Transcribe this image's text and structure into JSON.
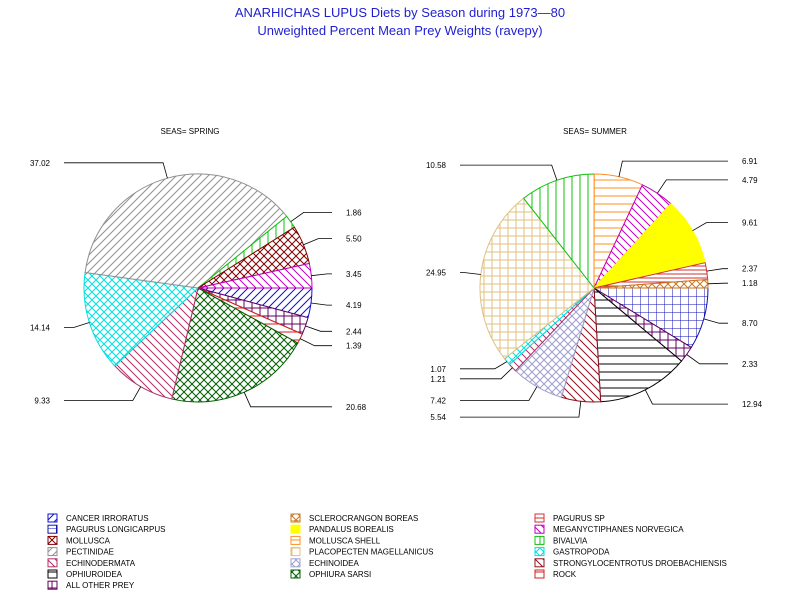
{
  "titles": {
    "line1": "ANARHICHAS LUPUS Diets by Season during 1973—80",
    "line2": "Unweighted Percent Mean Prey Weights (ravepy)"
  },
  "legend_items": [
    {
      "key": "cancer",
      "name": "CANCER IRRORATUS",
      "color": "#1010d0",
      "pattern": "fwd"
    },
    {
      "key": "sclero",
      "name": "SCLEROCRANGON BOREAS",
      "color": "#c87820",
      "pattern": "xbox"
    },
    {
      "key": "pagsp",
      "name": "PAGURUS SP",
      "color": "#d03030",
      "pattern": "hbox"
    },
    {
      "key": "paglong",
      "name": "PAGURUS LONGICARPUS",
      "color": "#1010b0",
      "pattern": "box"
    },
    {
      "key": "pandalus",
      "name": "PANDALUS BOREALIS",
      "color": "#ffff00",
      "pattern": "solid"
    },
    {
      "key": "megany",
      "name": "MEGANYCTIPHANES NORVEGICA",
      "color": "#c000c0",
      "pattern": "bwd"
    },
    {
      "key": "mollusca",
      "name": "MOLLUSCA",
      "color": "#800000",
      "pattern": "cross"
    },
    {
      "key": "mshell",
      "name": "MOLLUSCA SHELL",
      "color": "#ff9020",
      "pattern": "hor"
    },
    {
      "key": "bivalvia",
      "name": "BIVALVIA",
      "color": "#10c010",
      "pattern": "vert"
    },
    {
      "key": "pectin",
      "name": "PECTINIDAE",
      "color": "#909090",
      "pattern": "fwd"
    },
    {
      "key": "placo",
      "name": "PLACOPECTEN MAGELLANICUS",
      "color": "#e0c080",
      "pattern": "grid"
    },
    {
      "key": "gastro",
      "name": "GASTROPODA",
      "color": "#00e0e0",
      "pattern": "cross"
    },
    {
      "key": "echino",
      "name": "ECHINODERMATA",
      "color": "#b0306a",
      "pattern": "bwd"
    },
    {
      "key": "echinoidea",
      "name": "ECHINOIDEA",
      "color": "#a0a0d0",
      "pattern": "cross"
    },
    {
      "key": "strongy",
      "name": "STRONGYLOCENTROTUS DROEBACHIENSIS",
      "color": "#901020",
      "pattern": "bwd"
    },
    {
      "key": "ophiu",
      "name": "OPHIUROIDEA",
      "color": "#000000",
      "pattern": "hor"
    },
    {
      "key": "ophsarsi",
      "name": "OPHIURA SARSI",
      "color": "#006000",
      "pattern": "cross"
    },
    {
      "key": "rock",
      "name": "ROCK",
      "color": "#d02020",
      "pattern": "hor"
    },
    {
      "key": "other",
      "name": "ALL OTHER PREY",
      "color": "#600060",
      "pattern": "grid"
    }
  ],
  "chart_data": [
    {
      "type": "pie",
      "title": "SEAS= SPRING",
      "slices": [
        {
          "key": "cancer",
          "value": 4.19,
          "label": "4.19"
        },
        {
          "key": "other",
          "value": 2.44,
          "label": "2.44"
        },
        {
          "key": "rock",
          "value": 1.39,
          "label": "1.39"
        },
        {
          "key": "ophsarsi",
          "value": 20.68,
          "label": "20.68"
        },
        {
          "key": "echino",
          "value": 9.33,
          "label": "9.33"
        },
        {
          "key": "gastro",
          "value": 14.14,
          "label": "14.14"
        },
        {
          "key": "pectin",
          "value": 37.02,
          "label": "37.02"
        },
        {
          "key": "bivalvia",
          "value": 1.86,
          "label": "1.86"
        },
        {
          "key": "mollusca",
          "value": 5.5,
          "label": "5.50"
        },
        {
          "key": "megany",
          "value": 3.45,
          "label": "3.45"
        }
      ]
    },
    {
      "type": "pie",
      "title": "SEAS= SUMMER",
      "slices": [
        {
          "key": "paglong",
          "value": 8.7,
          "label": "8.70"
        },
        {
          "key": "other",
          "value": 2.33,
          "label": "2.33"
        },
        {
          "key": "ophiu",
          "value": 12.94,
          "label": "12.94"
        },
        {
          "key": "strongy",
          "value": 5.54,
          "label": "5.54"
        },
        {
          "key": "echinoidea",
          "value": 7.42,
          "label": "7.42"
        },
        {
          "key": "echino",
          "value": 1.21,
          "label": "1.21"
        },
        {
          "key": "gastro",
          "value": 1.07,
          "label": "1.07"
        },
        {
          "key": "placo",
          "value": 24.95,
          "label": "24.95"
        },
        {
          "key": "bivalvia",
          "value": 10.58,
          "label": "10.58"
        },
        {
          "key": "mshell",
          "value": 6.91,
          "label": "6.91"
        },
        {
          "key": "megany",
          "value": 4.79,
          "label": "4.79"
        },
        {
          "key": "pandalus",
          "value": 9.61,
          "label": "9.61"
        },
        {
          "key": "pagsp",
          "value": 2.37,
          "label": "2.37"
        },
        {
          "key": "sclero",
          "value": 1.18,
          "label": "1.18"
        }
      ]
    }
  ]
}
